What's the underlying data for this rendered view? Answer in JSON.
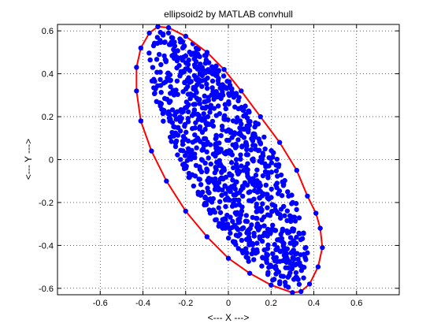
{
  "chart_data": {
    "type": "scatter",
    "title": "ellipsoid2 by MATLAB convhull",
    "xlabel": "<--- X --->",
    "ylabel": "<--- Y --->",
    "xlim": [
      -0.8,
      0.8
    ],
    "ylim": [
      -0.63,
      0.63
    ],
    "x_ticks": [
      -0.6,
      -0.4,
      -0.2,
      0,
      0.2,
      0.4,
      0.6
    ],
    "x_tick_labels": [
      "-0.6",
      "-0.4",
      "-0.2",
      "0",
      "0.2",
      "0.4",
      "0.6"
    ],
    "y_ticks": [
      -0.6,
      -0.4,
      -0.2,
      0,
      0.2,
      0.4,
      0.6
    ],
    "y_tick_labels": [
      "-0.6",
      "-0.4",
      "-0.2",
      "0",
      "0.2",
      "0.4",
      "0.6"
    ],
    "grid": true,
    "grid_style": "dotted",
    "legend": "none",
    "series": [
      {
        "kind": "points",
        "color": "#0000ff",
        "marker": "filled-circle",
        "point_count_estimate": 1000,
        "region": {
          "shape": "ellipse",
          "center": [
            0.0,
            0.0
          ],
          "semi_major": 0.675,
          "semi_minor": 0.205,
          "major_axis_angle_deg": -61
        }
      },
      {
        "kind": "hull",
        "color": "#ff0000",
        "points": [
          [
            -0.33,
            0.62
          ],
          [
            -0.28,
            0.615
          ],
          [
            -0.2,
            0.575
          ],
          [
            -0.1,
            0.5
          ],
          [
            -0.02,
            0.42
          ],
          [
            0.06,
            0.32
          ],
          [
            0.15,
            0.2
          ],
          [
            0.24,
            0.08
          ],
          [
            0.32,
            -0.05
          ],
          [
            0.37,
            -0.17
          ],
          [
            0.41,
            -0.25
          ],
          [
            0.43,
            -0.32
          ],
          [
            0.44,
            -0.41
          ],
          [
            0.42,
            -0.5
          ],
          [
            0.38,
            -0.58
          ],
          [
            0.34,
            -0.615
          ],
          [
            0.3,
            -0.62
          ],
          [
            0.2,
            -0.585
          ],
          [
            0.1,
            -0.53
          ],
          [
            0.0,
            -0.46
          ],
          [
            -0.1,
            -0.36
          ],
          [
            -0.2,
            -0.24
          ],
          [
            -0.29,
            -0.1
          ],
          [
            -0.36,
            0.04
          ],
          [
            -0.41,
            0.18
          ],
          [
            -0.43,
            0.32
          ],
          [
            -0.43,
            0.43
          ],
          [
            -0.41,
            0.52
          ],
          [
            -0.37,
            0.59
          ],
          [
            -0.33,
            0.62
          ]
        ]
      }
    ]
  }
}
